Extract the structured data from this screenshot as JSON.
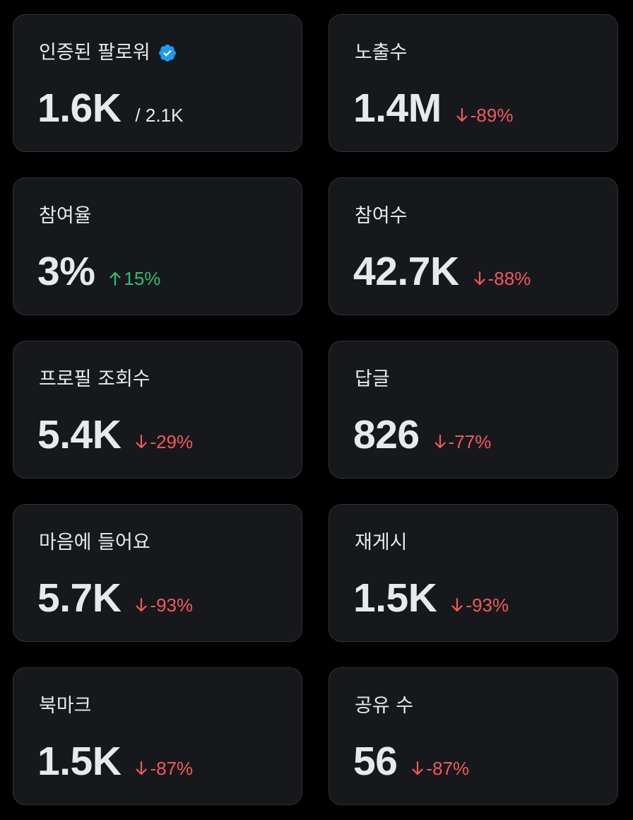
{
  "colors": {
    "background": "#000000",
    "card": "#16181c",
    "card_border": "#2f3336",
    "text": "#e7e9ea",
    "down": "#f4575f",
    "up": "#2dbf72",
    "verified": "#1d9bf0"
  },
  "cards": [
    {
      "label": "인증된 팔로워",
      "icon": "verified-badge-icon",
      "value": "1.6K",
      "suffix": "/ 2.1K"
    },
    {
      "label": "노출수",
      "value": "1.4M",
      "change": "-89%",
      "direction": "down"
    },
    {
      "label": "참여율",
      "value": "3%",
      "change": "15%",
      "direction": "up"
    },
    {
      "label": "참여수",
      "value": "42.7K",
      "change": "-88%",
      "direction": "down"
    },
    {
      "label": "프로필 조회수",
      "value": "5.4K",
      "change": "-29%",
      "direction": "down"
    },
    {
      "label": "답글",
      "value": "826",
      "change": "-77%",
      "direction": "down"
    },
    {
      "label": "마음에 들어요",
      "value": "5.7K",
      "change": "-93%",
      "direction": "down"
    },
    {
      "label": "재게시",
      "value": "1.5K",
      "change": "-93%",
      "direction": "down"
    },
    {
      "label": "북마크",
      "value": "1.5K",
      "change": "-87%",
      "direction": "down"
    },
    {
      "label": "공유 수",
      "value": "56",
      "change": "-87%",
      "direction": "down"
    }
  ]
}
